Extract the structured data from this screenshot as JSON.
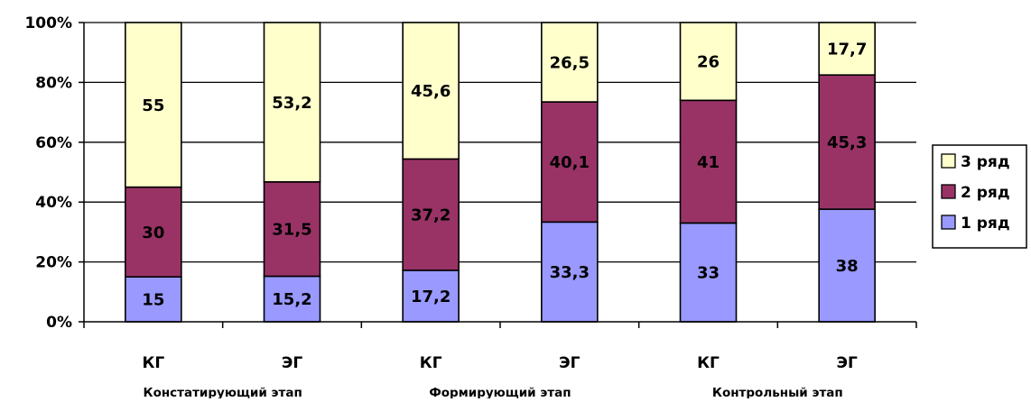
{
  "chart_data": {
    "type": "bar",
    "stacked": "percent",
    "categories": [
      "КГ",
      "ЭГ",
      "КГ",
      "ЭГ",
      "КГ",
      "ЭГ"
    ],
    "groups": [
      {
        "label": "Констатирующий этап",
        "span": [
          0,
          1
        ]
      },
      {
        "label": "Формирующий этап",
        "span": [
          2,
          3
        ]
      },
      {
        "label": "Контрольный этап",
        "span": [
          4,
          5
        ]
      }
    ],
    "series": [
      {
        "name": "1 ряд",
        "color": "#9999ff",
        "values": [
          15,
          15.2,
          17.2,
          33.3,
          33,
          38
        ],
        "labels": [
          "15",
          "15,2",
          "17,2",
          "33,3",
          "33",
          "38"
        ]
      },
      {
        "name": "2 ряд",
        "color": "#993366",
        "values": [
          30,
          31.5,
          37.2,
          40.1,
          41,
          45.3
        ],
        "labels": [
          "30",
          "31,5",
          "37,2",
          "40,1",
          "41",
          "45,3"
        ]
      },
      {
        "name": "3 ряд",
        "color": "#ffffcc",
        "values": [
          55,
          53.2,
          45.6,
          26.5,
          26,
          17.7
        ],
        "labels": [
          "55",
          "53,2",
          "45,6",
          "26,5",
          "26",
          "17,7"
        ]
      }
    ],
    "yticks": [
      "0%",
      "20%",
      "40%",
      "60%",
      "80%",
      "100%"
    ],
    "ylim": [
      0,
      100
    ],
    "grid": true,
    "legend": {
      "position": "right",
      "order": [
        "3 ряд",
        "2 ряд",
        "1 ряд"
      ]
    }
  }
}
